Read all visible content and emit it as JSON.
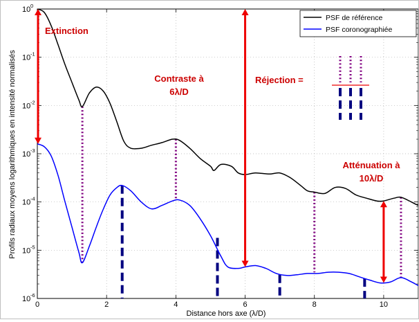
{
  "chart_data": {
    "type": "line",
    "xlabel": "Distance hors axe (λ/D)",
    "ylabel": "Profils radiaux moyens logarithmiques en intensité normalisés",
    "xlim": [
      0,
      11
    ],
    "ylim": [
      1e-06,
      1
    ],
    "yscale": "log",
    "x_ticks": [
      0,
      2,
      4,
      6,
      8,
      10
    ],
    "x_tick_labels": [
      "0",
      "2",
      "4",
      "6",
      "8",
      "10"
    ],
    "y_ticks": [
      1e-06,
      1e-05,
      0.0001,
      0.001,
      0.01,
      0.1,
      1
    ],
    "y_tick_labels": [
      {
        "base": "10",
        "exp": "-6"
      },
      {
        "base": "10",
        "exp": "-5"
      },
      {
        "base": "10",
        "exp": "-4"
      },
      {
        "base": "10",
        "exp": "-3"
      },
      {
        "base": "10",
        "exp": "-2"
      },
      {
        "base": "10",
        "exp": "-1"
      },
      {
        "base": "10",
        "exp": "0"
      }
    ],
    "legend_position": "top-right",
    "series": [
      {
        "name": "PSF de référence",
        "color": "#000000",
        "points": [
          [
            0,
            1
          ],
          [
            0.2,
            0.85
          ],
          [
            0.4,
            0.45
          ],
          [
            0.6,
            0.18
          ],
          [
            0.8,
            0.07
          ],
          [
            1.0,
            0.03
          ],
          [
            1.2,
            0.013
          ],
          [
            1.3,
            0.0095
          ],
          [
            1.5,
            0.018
          ],
          [
            1.7,
            0.024
          ],
          [
            1.9,
            0.02
          ],
          [
            2.1,
            0.011
          ],
          [
            2.3,
            0.0045
          ],
          [
            2.5,
            0.0018
          ],
          [
            2.7,
            0.0013
          ],
          [
            3.0,
            0.0013
          ],
          [
            3.3,
            0.0015
          ],
          [
            3.6,
            0.0017
          ],
          [
            3.9,
            0.002
          ],
          [
            4.1,
            0.0019
          ],
          [
            4.4,
            0.0013
          ],
          [
            4.7,
            0.0008
          ],
          [
            5.0,
            0.00055
          ],
          [
            5.1,
            0.00045
          ],
          [
            5.3,
            0.0006
          ],
          [
            5.6,
            0.00055
          ],
          [
            5.8,
            0.0004
          ],
          [
            6.0,
            0.00037
          ],
          [
            6.3,
            0.0004
          ],
          [
            6.7,
            0.00038
          ],
          [
            7.0,
            0.0004
          ],
          [
            7.3,
            0.00032
          ],
          [
            7.6,
            0.00022
          ],
          [
            7.8,
            0.00017
          ],
          [
            8.0,
            0.00016
          ],
          [
            8.3,
            0.00015
          ],
          [
            8.6,
            0.0002
          ],
          [
            8.9,
            0.00019
          ],
          [
            9.2,
            0.00014
          ],
          [
            9.5,
            0.00012
          ],
          [
            9.8,
            0.000105
          ],
          [
            10.0,
            0.000105
          ],
          [
            10.3,
            0.00012
          ],
          [
            10.5,
            0.000125
          ],
          [
            10.8,
            0.0001
          ],
          [
            11,
            8.5e-05
          ],
          [
            11.3,
            7.5e-05
          ],
          [
            11.6,
            7e-05
          ],
          [
            11.9,
            8e-05
          ]
        ]
      },
      {
        "name": "PSF coronographiée",
        "color": "#0000ff",
        "points": [
          [
            0,
            0.0016
          ],
          [
            0.2,
            0.0014
          ],
          [
            0.4,
            0.0009
          ],
          [
            0.6,
            0.00035
          ],
          [
            0.8,
            0.0001
          ],
          [
            1.0,
            3e-05
          ],
          [
            1.2,
            9e-06
          ],
          [
            1.3,
            5.5e-06
          ],
          [
            1.5,
            1.2e-05
          ],
          [
            1.7,
            3e-05
          ],
          [
            1.9,
            7e-05
          ],
          [
            2.1,
            0.00014
          ],
          [
            2.3,
            0.0002
          ],
          [
            2.45,
            0.00022
          ],
          [
            2.7,
            0.00017
          ],
          [
            3.0,
            0.0001
          ],
          [
            3.3,
            7.2e-05
          ],
          [
            3.6,
            8.5e-05
          ],
          [
            3.9,
            0.000105
          ],
          [
            4.1,
            0.00011
          ],
          [
            4.4,
            8.5e-05
          ],
          [
            4.7,
            4.5e-05
          ],
          [
            5.0,
            2e-05
          ],
          [
            5.3,
            7.5e-06
          ],
          [
            5.5,
            4.5e-06
          ],
          [
            5.8,
            4.2e-06
          ],
          [
            6.0,
            4.5e-06
          ],
          [
            6.3,
            4.8e-06
          ],
          [
            6.6,
            4.2e-06
          ],
          [
            6.9,
            3.3e-06
          ],
          [
            7.2,
            3e-06
          ],
          [
            7.5,
            3.1e-06
          ],
          [
            7.8,
            3.3e-06
          ],
          [
            8.1,
            3.3e-06
          ],
          [
            8.4,
            3.5e-06
          ],
          [
            8.7,
            3.5e-06
          ],
          [
            9.0,
            3.3e-06
          ],
          [
            9.3,
            2.8e-06
          ],
          [
            9.6,
            2.4e-06
          ],
          [
            9.9,
            2.1e-06
          ],
          [
            10.2,
            2.2e-06
          ],
          [
            10.5,
            2.7e-06
          ],
          [
            10.8,
            2.2e-06
          ],
          [
            11.1,
            1.7e-06
          ],
          [
            11.4,
            1.4e-06
          ],
          [
            11.7,
            1.3e-06
          ],
          [
            12,
            1.2e-06
          ]
        ]
      }
    ],
    "annotations": {
      "extinction": "Extinction",
      "contraste_line1": "Contraste à",
      "contraste_line2": "6λ/D",
      "rejection": "Réjection =",
      "attenuation_line1": "Atténuation à",
      "attenuation_line2": "10λ/D"
    },
    "colors": {
      "arrow": "#ee0000",
      "annotation_text": "#cc0000",
      "dotted": "#800080",
      "dashed": "#000080"
    }
  }
}
